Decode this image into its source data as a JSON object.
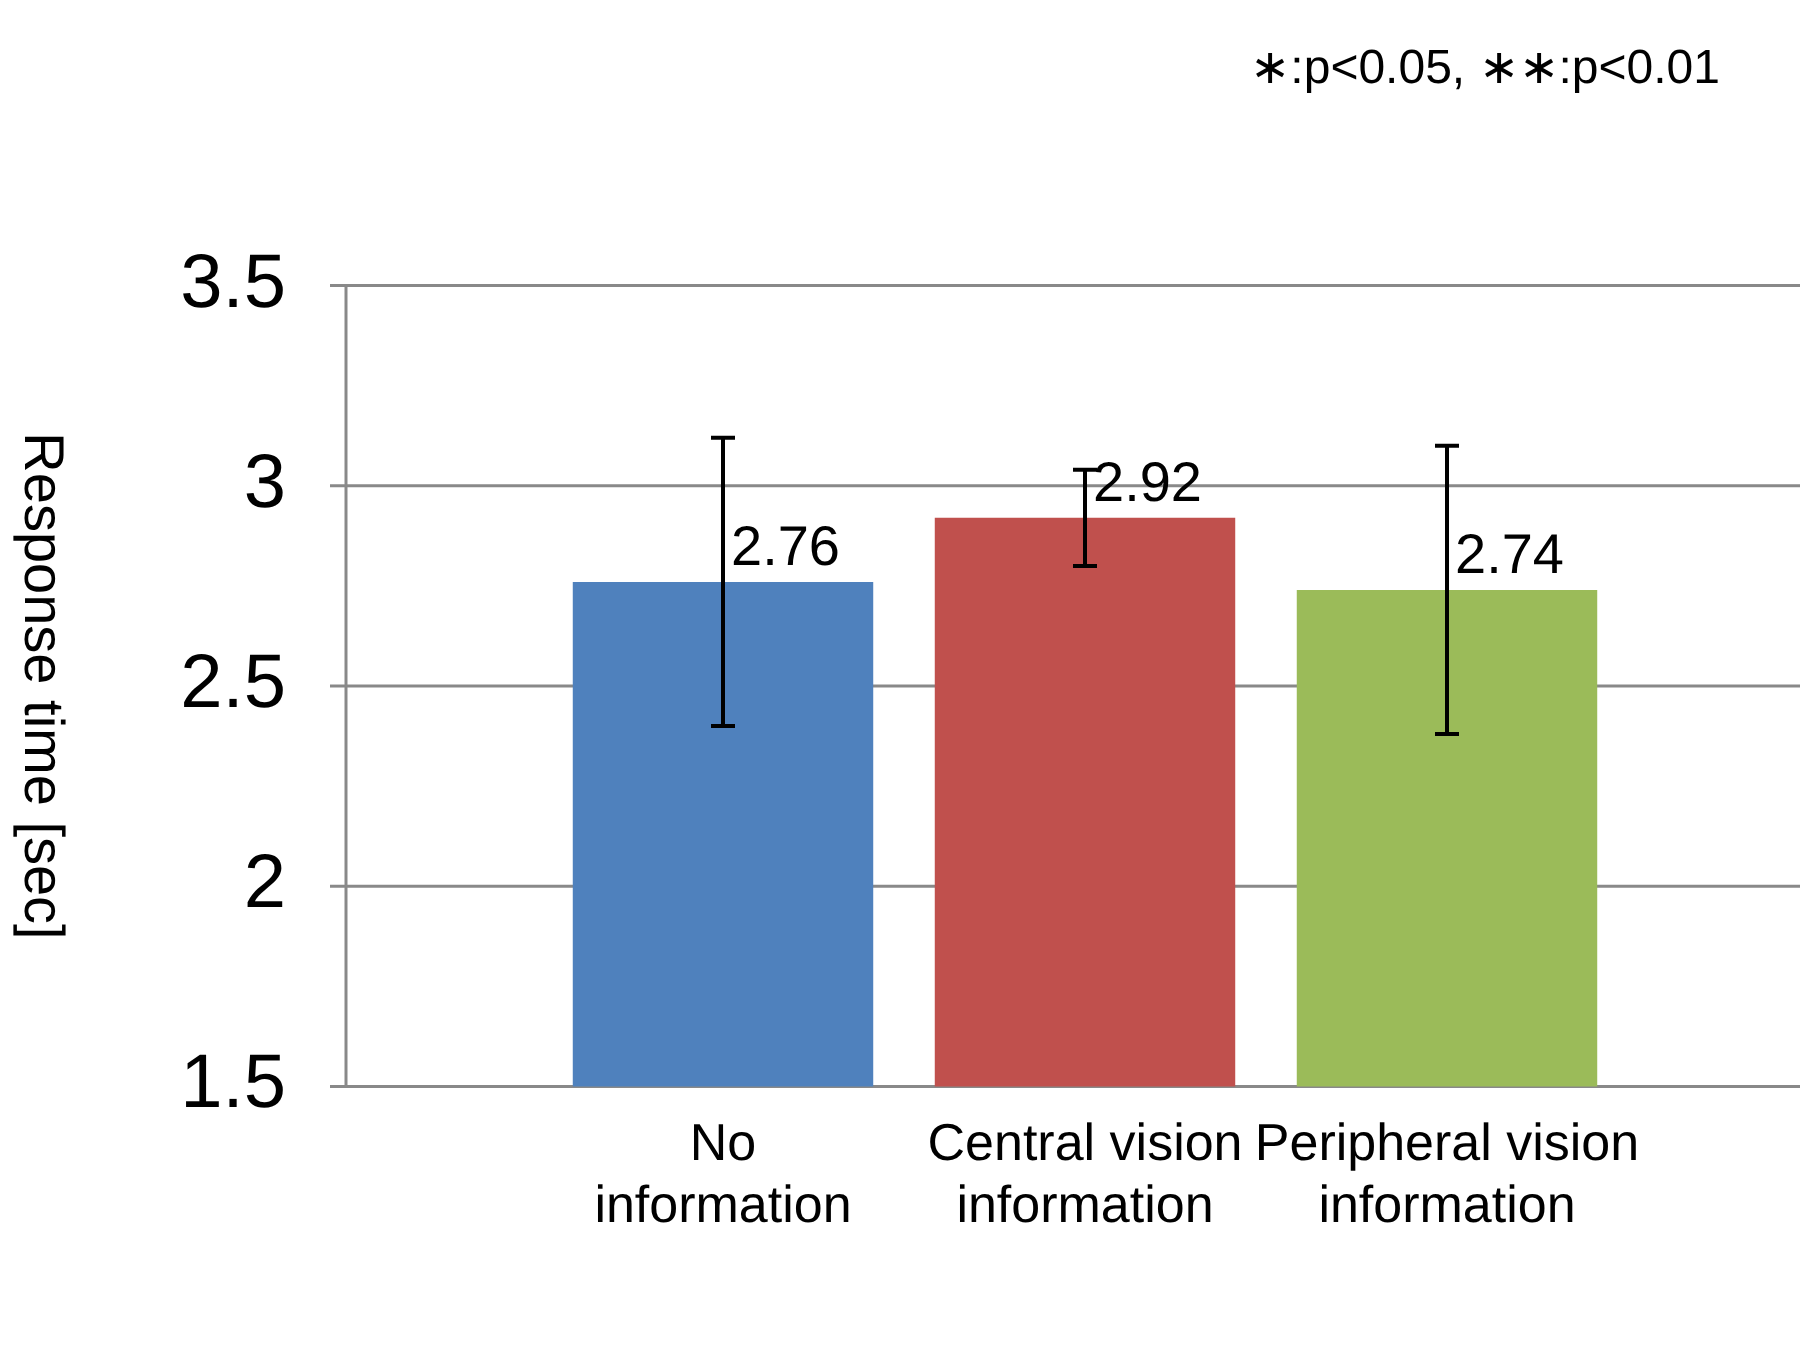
{
  "chart_data": {
    "type": "bar",
    "ylabel": "Response time [sec]",
    "categories": [
      "No information",
      "Central vision information",
      "Peripheral vision information"
    ],
    "values": [
      2.76,
      2.92,
      2.74
    ],
    "colors": [
      "#4f81bd",
      "#c0504d",
      "#9bbb59"
    ],
    "errors": [
      0.36,
      0.12,
      0.36
    ],
    "ylim": [
      1.5,
      3.5
    ],
    "yticks": [
      1.5,
      2,
      2.5,
      3,
      3.5
    ],
    "grid": "y",
    "data_labels": true,
    "annotations": [
      "∗:p<0.05, ∗∗:p<0.01"
    ]
  }
}
